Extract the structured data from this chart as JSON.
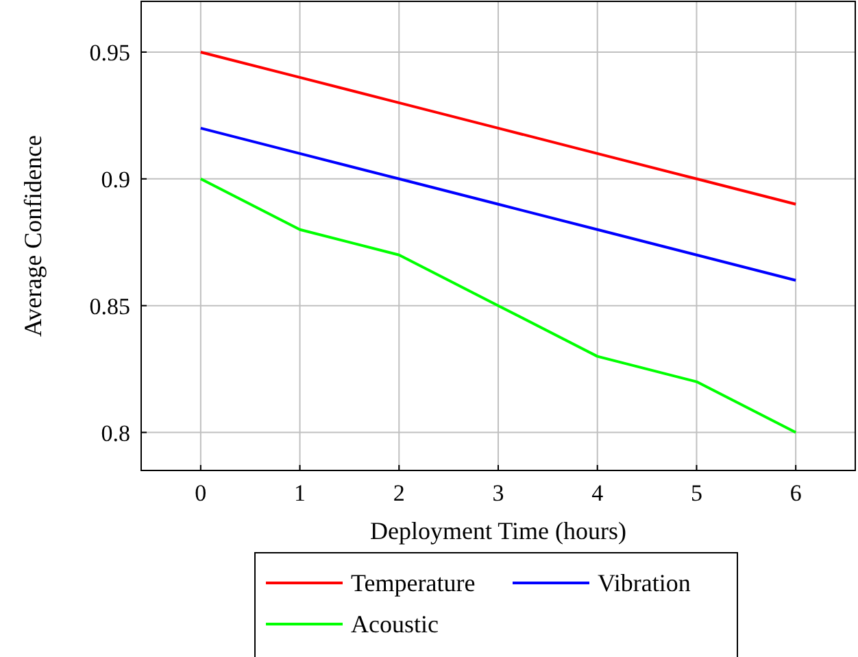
{
  "chart_data": {
    "type": "line",
    "xlabel": "Deployment Time (hours)",
    "ylabel": "Average Confidence",
    "x": [
      0,
      1,
      2,
      3,
      4,
      5,
      6
    ],
    "series": [
      {
        "name": "Temperature",
        "color": "#ff0000",
        "values": [
          0.95,
          0.94,
          0.93,
          0.92,
          0.91,
          0.9,
          0.89
        ]
      },
      {
        "name": "Vibration",
        "color": "#0000ff",
        "values": [
          0.92,
          0.91,
          0.9,
          0.89,
          0.88,
          0.87,
          0.86
        ]
      },
      {
        "name": "Acoustic",
        "color": "#00ff00",
        "values": [
          0.9,
          0.88,
          0.87,
          0.85,
          0.83,
          0.82,
          0.8
        ]
      }
    ],
    "xlim": [
      -0.6,
      6.6
    ],
    "xticks": [
      0,
      1,
      2,
      3,
      4,
      5,
      6
    ],
    "ylim": [
      0.785,
      0.97
    ],
    "yticks": [
      {
        "value": 0.8,
        "label": "0.8"
      },
      {
        "value": 0.85,
        "label": "0.85"
      },
      {
        "value": 0.9,
        "label": "0.9"
      },
      {
        "value": 0.95,
        "label": "0.95"
      }
    ],
    "grid": true,
    "legend": "bottom",
    "marker": "none",
    "line_style": "solid"
  }
}
